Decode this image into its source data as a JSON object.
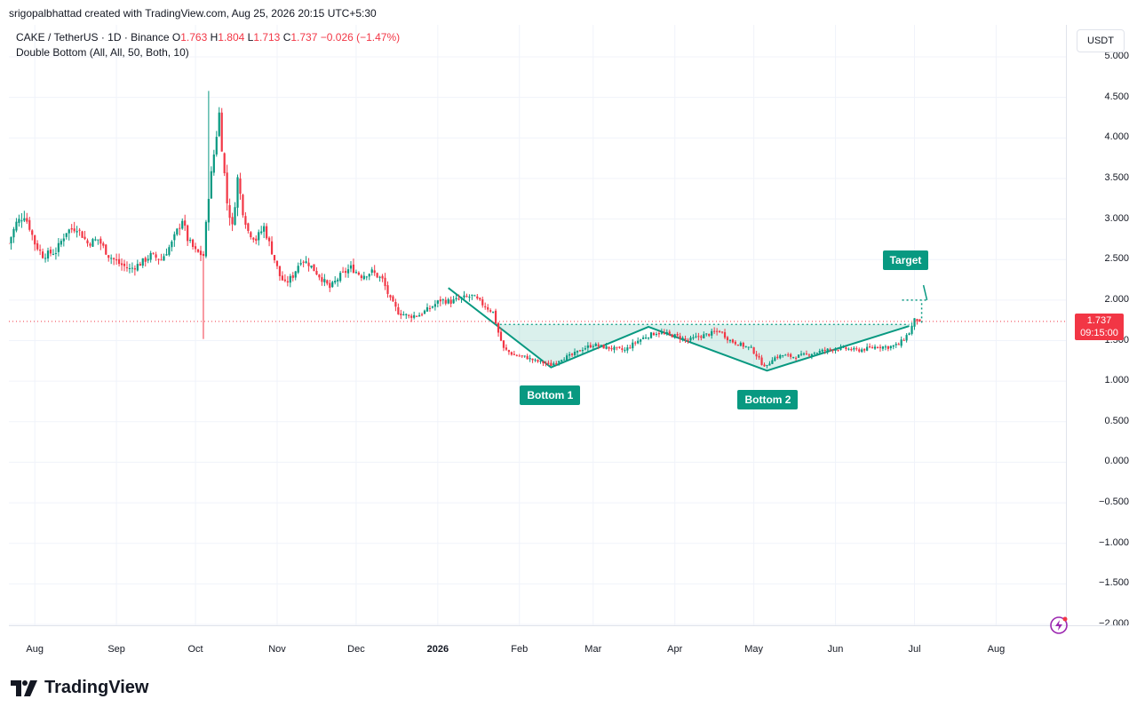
{
  "header": {
    "attribution": "srigopalbhattad created with TradingView.com, Aug 25, 2026 20:15 UTC+5:30"
  },
  "legend": {
    "symbol": "CAKE / TetherUS · 1D · Binance",
    "o_label": "O",
    "o_value": "1.763",
    "h_label": "H",
    "h_value": "1.804",
    "l_label": "L",
    "l_value": "1.713",
    "c_label": "C",
    "c_value": "1.737",
    "change": "−0.026 (−1.47%)",
    "indicator": "Double Bottom (All, All, 50, Both, 10)"
  },
  "currency_button": "USDT",
  "price_tag": {
    "price": "1.737",
    "countdown": "09:15:00"
  },
  "pattern_labels": {
    "bottom1": "Bottom 1",
    "bottom2": "Bottom 2",
    "target": "Target"
  },
  "brand": {
    "name": "TradingView"
  },
  "colors": {
    "up": "#089981",
    "down": "#f23645",
    "grid": "#f0f3fa",
    "pattern": "#089981"
  },
  "chart_data": {
    "type": "candlestick",
    "y_ticks": [
      "5.000",
      "4.500",
      "4.000",
      "3.500",
      "3.000",
      "2.500",
      "2.000",
      "1.500",
      "1.000",
      "0.500",
      "0.000",
      "−0.500",
      "−1.000",
      "−1.500",
      "−2.000"
    ],
    "ylim": [
      -2.0,
      5.0
    ],
    "x_ticks": [
      {
        "label": "Aug",
        "day": 0
      },
      {
        "label": "Sep",
        "day": 31
      },
      {
        "label": "Oct",
        "day": 61
      },
      {
        "label": "Nov",
        "day": 92
      },
      {
        "label": "Dec",
        "day": 122
      },
      {
        "label": "2026",
        "day": 153,
        "bold": true
      },
      {
        "label": "Feb",
        "day": 184
      },
      {
        "label": "Mar",
        "day": 212
      },
      {
        "label": "Apr",
        "day": 243
      },
      {
        "label": "May",
        "day": 273
      },
      {
        "label": "Jun",
        "day": 304
      },
      {
        "label": "Jul",
        "day": 334
      },
      {
        "label": "Aug",
        "day": 365
      }
    ],
    "xlim": [
      -10,
      390
    ],
    "close_anchors": [
      [
        -10,
        2.7
      ],
      [
        -7,
        2.95
      ],
      [
        -4,
        3.05
      ],
      [
        -2,
        2.9
      ],
      [
        0,
        2.7
      ],
      [
        3,
        2.55
      ],
      [
        8,
        2.6
      ],
      [
        12,
        2.85
      ],
      [
        16,
        2.9
      ],
      [
        20,
        2.7
      ],
      [
        24,
        2.75
      ],
      [
        28,
        2.55
      ],
      [
        32,
        2.45
      ],
      [
        36,
        2.38
      ],
      [
        40,
        2.45
      ],
      [
        44,
        2.55
      ],
      [
        48,
        2.5
      ],
      [
        52,
        2.7
      ],
      [
        56,
        3.0
      ],
      [
        58,
        2.75
      ],
      [
        61,
        2.6
      ],
      [
        64,
        2.55
      ],
      [
        66,
        3.3
      ],
      [
        68,
        3.8
      ],
      [
        70,
        4.3
      ],
      [
        71,
        3.9
      ],
      [
        73,
        3.2
      ],
      [
        75,
        2.9
      ],
      [
        77,
        3.5
      ],
      [
        79,
        3.1
      ],
      [
        81,
        2.85
      ],
      [
        84,
        2.75
      ],
      [
        87,
        2.9
      ],
      [
        90,
        2.6
      ],
      [
        93,
        2.3
      ],
      [
        95,
        2.2
      ],
      [
        98,
        2.3
      ],
      [
        101,
        2.5
      ],
      [
        104,
        2.45
      ],
      [
        108,
        2.3
      ],
      [
        112,
        2.15
      ],
      [
        116,
        2.3
      ],
      [
        120,
        2.4
      ],
      [
        124,
        2.3
      ],
      [
        128,
        2.35
      ],
      [
        132,
        2.25
      ],
      [
        135,
        2.0
      ],
      [
        138,
        1.85
      ],
      [
        142,
        1.8
      ],
      [
        146,
        1.82
      ],
      [
        150,
        1.9
      ],
      [
        154,
        2.0
      ],
      [
        158,
        1.98
      ],
      [
        162,
        2.02
      ],
      [
        166,
        2.05
      ],
      [
        170,
        1.95
      ],
      [
        174,
        1.85
      ],
      [
        176,
        1.6
      ],
      [
        178,
        1.4
      ],
      [
        182,
        1.32
      ],
      [
        186,
        1.3
      ],
      [
        190,
        1.25
      ],
      [
        194,
        1.22
      ],
      [
        196,
        1.2
      ],
      [
        200,
        1.28
      ],
      [
        204,
        1.32
      ],
      [
        208,
        1.4
      ],
      [
        212,
        1.45
      ],
      [
        216,
        1.42
      ],
      [
        220,
        1.4
      ],
      [
        224,
        1.38
      ],
      [
        228,
        1.48
      ],
      [
        232,
        1.55
      ],
      [
        236,
        1.6
      ],
      [
        240,
        1.58
      ],
      [
        244,
        1.55
      ],
      [
        248,
        1.5
      ],
      [
        252,
        1.55
      ],
      [
        256,
        1.58
      ],
      [
        260,
        1.62
      ],
      [
        264,
        1.5
      ],
      [
        268,
        1.45
      ],
      [
        272,
        1.4
      ],
      [
        274,
        1.32
      ],
      [
        276,
        1.22
      ],
      [
        278,
        1.18
      ],
      [
        280,
        1.28
      ],
      [
        284,
        1.32
      ],
      [
        288,
        1.3
      ],
      [
        292,
        1.32
      ],
      [
        296,
        1.35
      ],
      [
        300,
        1.38
      ],
      [
        304,
        1.4
      ],
      [
        308,
        1.4
      ],
      [
        312,
        1.38
      ],
      [
        316,
        1.4
      ],
      [
        320,
        1.43
      ],
      [
        324,
        1.42
      ],
      [
        328,
        1.45
      ],
      [
        332,
        1.6
      ],
      [
        334,
        1.75
      ],
      [
        336,
        1.76
      ]
    ],
    "last_close": 1.737,
    "neckline": 1.7,
    "pattern_points": [
      {
        "day": 157,
        "price": 2.15
      },
      {
        "day": 196,
        "price": 1.17
      },
      {
        "day": 233,
        "price": 1.67
      },
      {
        "day": 278,
        "price": 1.13
      },
      {
        "day": 332,
        "price": 1.68
      }
    ],
    "target_level": 2.25,
    "spike_low": {
      "day": 64,
      "price": 1.52
    },
    "spike_high": {
      "day": 66,
      "price": 4.58
    }
  }
}
